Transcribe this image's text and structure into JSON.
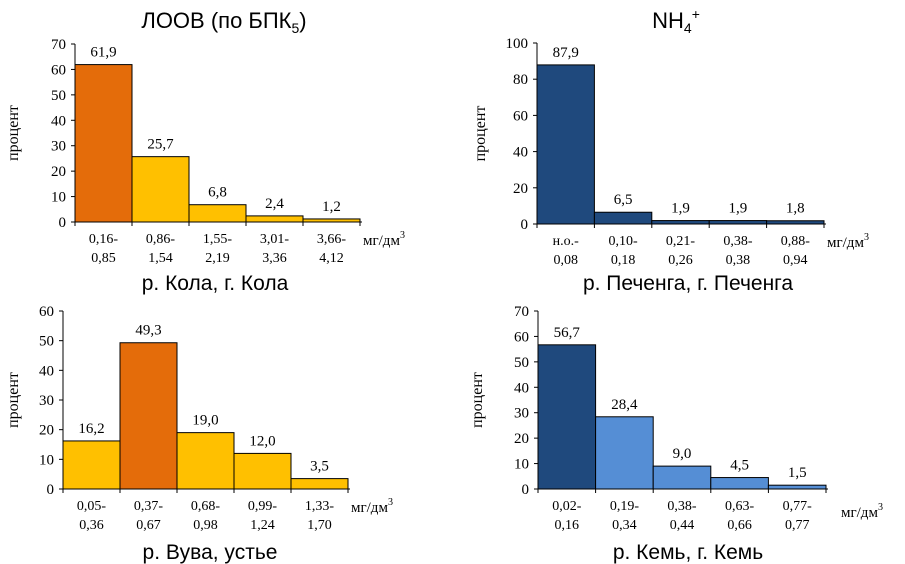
{
  "headings": {
    "left": "ЛООВ (по БПК",
    "left_sub": "5",
    "left_close": ")",
    "right": "NH",
    "right_sub": "4",
    "right_sup": "+"
  },
  "chart_data": [
    {
      "type": "bar",
      "title": "р. Кола, г. Кола",
      "ylabel": "процент",
      "xlabel_unit": "мг/дм",
      "xlabel_unit_sup": "3",
      "ylim": [
        0,
        70
      ],
      "yticks": [
        0,
        10,
        20,
        30,
        40,
        50,
        60,
        70
      ],
      "categories": [
        [
          "0,16-",
          "0,85"
        ],
        [
          "0,86-",
          "1,54"
        ],
        [
          "1,55-",
          "2,19"
        ],
        [
          "3,01-",
          "3,36"
        ],
        [
          "3,66-",
          "4,12"
        ]
      ],
      "values": [
        61.9,
        25.7,
        6.8,
        2.4,
        1.2
      ],
      "value_labels": [
        "61,9",
        "25,7",
        "6,8",
        "2,4",
        "1,2"
      ],
      "colors": [
        "#e46c0a",
        "#ffc000",
        "#ffc000",
        "#ffc000",
        "#ffc000"
      ]
    },
    {
      "type": "bar",
      "title": "р. Печенга, г. Печенга",
      "ylabel": "процент",
      "xlabel_unit": "мг/дм",
      "xlabel_unit_sup": "3",
      "ylim": [
        0,
        100
      ],
      "yticks": [
        0,
        20,
        40,
        60,
        80,
        100
      ],
      "categories": [
        [
          "н.о.-",
          "0,08"
        ],
        [
          "0,10-",
          "0,18"
        ],
        [
          "0,21-",
          "0,26"
        ],
        [
          "0,38-",
          "0,38"
        ],
        [
          "0,88-",
          "0,94"
        ]
      ],
      "values": [
        87.9,
        6.5,
        1.9,
        1.9,
        1.8
      ],
      "value_labels": [
        "87,9",
        "6,5",
        "1,9",
        "1,9",
        "1,8"
      ],
      "colors": [
        "#1f497d",
        "#1f497d",
        "#1f497d",
        "#1f497d",
        "#1f497d"
      ]
    },
    {
      "type": "bar",
      "title": "р. Вува, устье",
      "ylabel": "процент",
      "xlabel_unit": "мг/дм",
      "xlabel_unit_sup": "3",
      "ylim": [
        0,
        60
      ],
      "yticks": [
        0,
        10,
        20,
        30,
        40,
        50,
        60
      ],
      "categories": [
        [
          "0,05-",
          "0,36"
        ],
        [
          "0,37-",
          "0,67"
        ],
        [
          "0,68-",
          "0,98"
        ],
        [
          "0,99-",
          "1,24"
        ],
        [
          "1,33-",
          "1,70"
        ]
      ],
      "values": [
        16.2,
        49.3,
        19.0,
        12.0,
        3.5
      ],
      "value_labels": [
        "16,2",
        "49,3",
        "19,0",
        "12,0",
        "3,5"
      ],
      "colors": [
        "#ffc000",
        "#e46c0a",
        "#ffc000",
        "#ffc000",
        "#ffc000"
      ]
    },
    {
      "type": "bar",
      "title": "р. Кемь, г. Кемь",
      "ylabel": "процент",
      "xlabel_unit": "мг/дм",
      "xlabel_unit_sup": "3",
      "ylim": [
        0,
        70
      ],
      "yticks": [
        0,
        10,
        20,
        30,
        40,
        50,
        60,
        70
      ],
      "categories": [
        [
          "0,02-",
          "0,16"
        ],
        [
          "0,19-",
          "0,34"
        ],
        [
          "0,38-",
          "0,44"
        ],
        [
          "0,63-",
          "0,66"
        ],
        [
          "0,77-",
          "0,77"
        ]
      ],
      "values": [
        56.7,
        28.4,
        9.0,
        4.5,
        1.5
      ],
      "value_labels": [
        "56,7",
        "28,4",
        "9,0",
        "4,5",
        "1,5"
      ],
      "colors": [
        "#1f497d",
        "#558ed5",
        "#558ed5",
        "#558ed5",
        "#558ed5"
      ]
    }
  ]
}
